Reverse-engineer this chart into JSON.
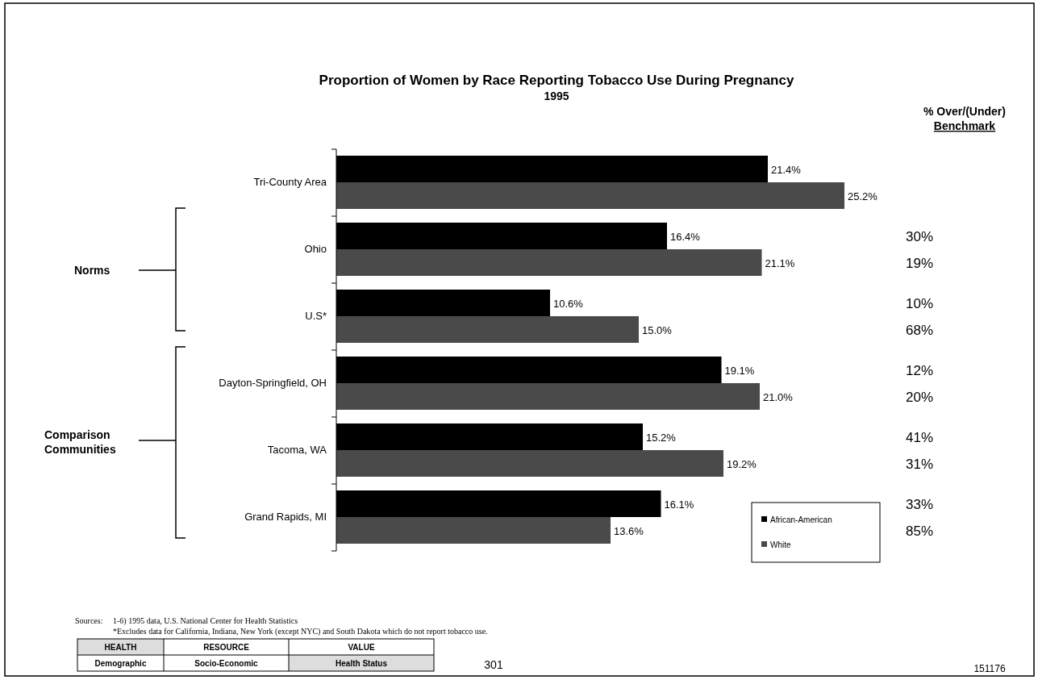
{
  "chart_data": {
    "type": "bar",
    "orientation": "horizontal",
    "title": "Proportion of Women by Race Reporting Tobacco Use During Pregnancy",
    "subtitle": "1995",
    "categories": [
      "Tri-County Area",
      "Ohio",
      "U.S*",
      "Dayton-Springfield, OH",
      "Tacoma, WA",
      "Grand Rapids, MI"
    ],
    "series": [
      {
        "name": "African-American",
        "color": "#000000",
        "values": [
          21.4,
          16.4,
          10.6,
          19.1,
          15.2,
          16.1
        ],
        "value_labels": [
          "21.4%",
          "16.4%",
          "10.6%",
          "19.1%",
          "15.2%",
          "16.1%"
        ]
      },
      {
        "name": "White",
        "color": "#4a4a4a",
        "values": [
          25.2,
          21.1,
          15.0,
          21.0,
          19.2,
          13.6
        ],
        "value_labels": [
          "25.2%",
          "21.1%",
          "15.0%",
          "21.0%",
          "19.2%",
          "13.6%"
        ]
      }
    ],
    "legend": "bottom right",
    "annotations": [
      "% Over/(Under)",
      "Benchmark",
      "30%",
      "19%",
      "10%",
      "68%",
      "12%",
      "20%",
      "41%",
      "31%",
      "33%",
      "85%",
      "Norms",
      "Comparison Communities",
      "Sources:",
      "1-6) 1995 data, U.S. National Center for Health Statistics",
      "*Excludes data for California, Indiana, New York (except NYC) and South Dakota which do not report tobacco use.",
      "HEALTH",
      "RESOURCE",
      "VALUE",
      "Demographic",
      "Socio-Economic",
      "Health Status",
      "301",
      "151176"
    ]
  }
}
